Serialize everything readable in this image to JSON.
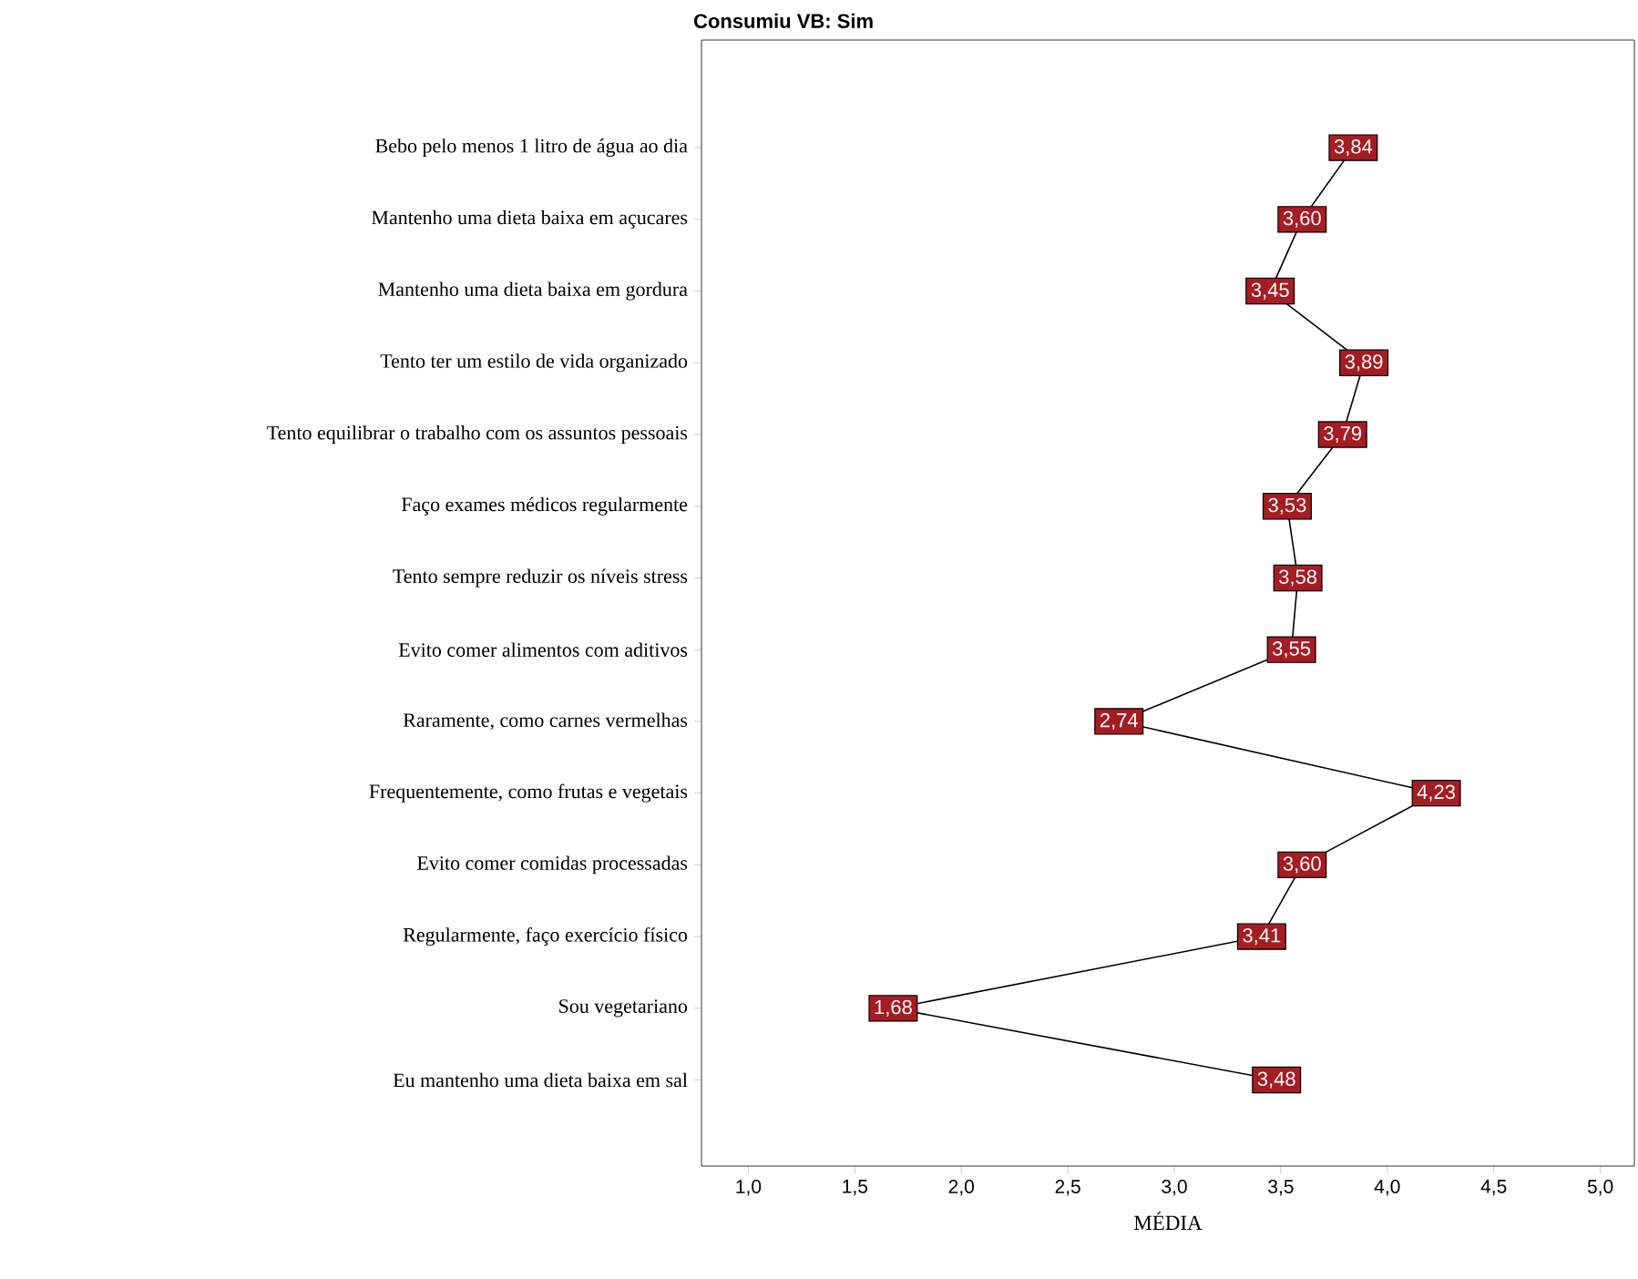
{
  "chart_data": {
    "type": "line",
    "orientation": "horizontal",
    "title": "Consumiu VB: Sim",
    "xlabel": "MÉDIA",
    "categories": [
      "Bebo pelo menos 1 litro de água ao dia",
      "Mantenho uma dieta baixa em açucares",
      "Mantenho uma dieta baixa em gordura",
      "Tento ter um estilo de vida organizado",
      "Tento equilibrar o trabalho com os assuntos pessoais",
      "Faço exames médicos regularmente",
      "Tento sempre reduzir os níveis stress",
      "Evito comer alimentos com aditivos",
      "Raramente, como carnes vermelhas",
      "Frequentemente, como frutas e vegetais",
      "Evito comer comidas processadas",
      "Regularmente, faço exercício físico",
      "Sou vegetariano",
      "Eu mantenho uma dieta baixa em sal"
    ],
    "values": [
      3.84,
      3.6,
      3.45,
      3.89,
      3.79,
      3.53,
      3.58,
      3.55,
      2.74,
      4.23,
      3.6,
      3.41,
      1.68,
      3.48
    ],
    "value_labels": [
      "3,84",
      "3,60",
      "3,45",
      "3,89",
      "3,79",
      "3,53",
      "3,58",
      "3,55",
      "2,74",
      "4,23",
      "3,60",
      "3,41",
      "1,68",
      "3,48"
    ],
    "color": "#000000",
    "marker": "square",
    "xlim": [
      0.78,
      5.16
    ],
    "xticks": [
      {
        "value": 1.0,
        "label": "1,0"
      },
      {
        "value": 1.5,
        "label": "1,5"
      },
      {
        "value": 2.0,
        "label": "2,0"
      },
      {
        "value": 2.5,
        "label": "2,5"
      },
      {
        "value": 3.0,
        "label": "3,0"
      },
      {
        "value": 3.5,
        "label": "3,5"
      },
      {
        "value": 4.0,
        "label": "4,0"
      },
      {
        "value": 4.5,
        "label": "4,5"
      },
      {
        "value": 5.0,
        "label": "5,0"
      }
    ]
  }
}
